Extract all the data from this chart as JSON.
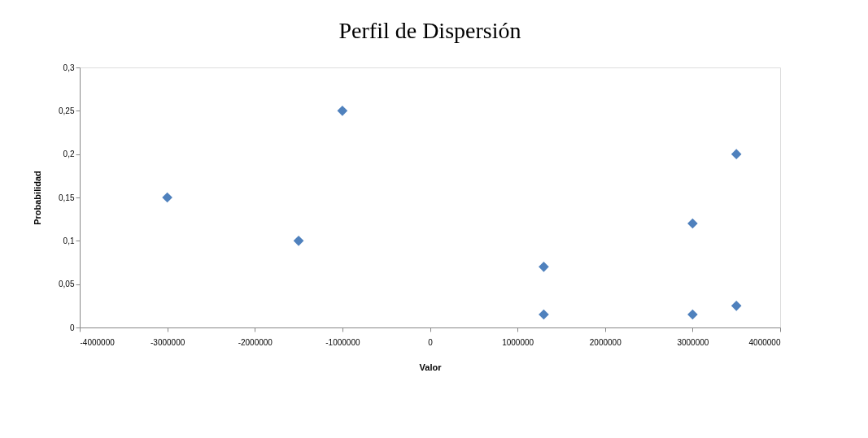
{
  "chart_data": {
    "type": "scatter",
    "title": "Perfil de Dispersión",
    "xlabel": "Valor",
    "ylabel": "Probabilidad",
    "x": [
      -3000000,
      -1500000,
      -1000000,
      1300000,
      1300000,
      3000000,
      3000000,
      3500000,
      3500000
    ],
    "series": [
      {
        "color": "#4f81bd",
        "values": [
          0.15,
          0.1,
          0.25,
          0.07,
          0.015,
          0.12,
          0.015,
          0.2,
          0.025
        ]
      }
    ],
    "xlim": [
      -4000000,
      4000000
    ],
    "xticks": [
      -4000000,
      -3000000,
      -2000000,
      -1000000,
      0,
      1000000,
      2000000,
      3000000,
      4000000
    ],
    "ylim": [
      0,
      0.3
    ],
    "yticks": [
      0,
      {
        "value": 0.05,
        "label": "0,05"
      },
      {
        "value": 0.1,
        "label": "0,1"
      },
      {
        "value": 0.15,
        "label": "0,15"
      },
      {
        "value": 0.2,
        "label": "0,2"
      },
      {
        "value": 0.25,
        "label": "0,25"
      },
      {
        "value": 0.3,
        "label": "0,3"
      }
    ],
    "marker": "diamond",
    "grid": false,
    "legend": false
  }
}
